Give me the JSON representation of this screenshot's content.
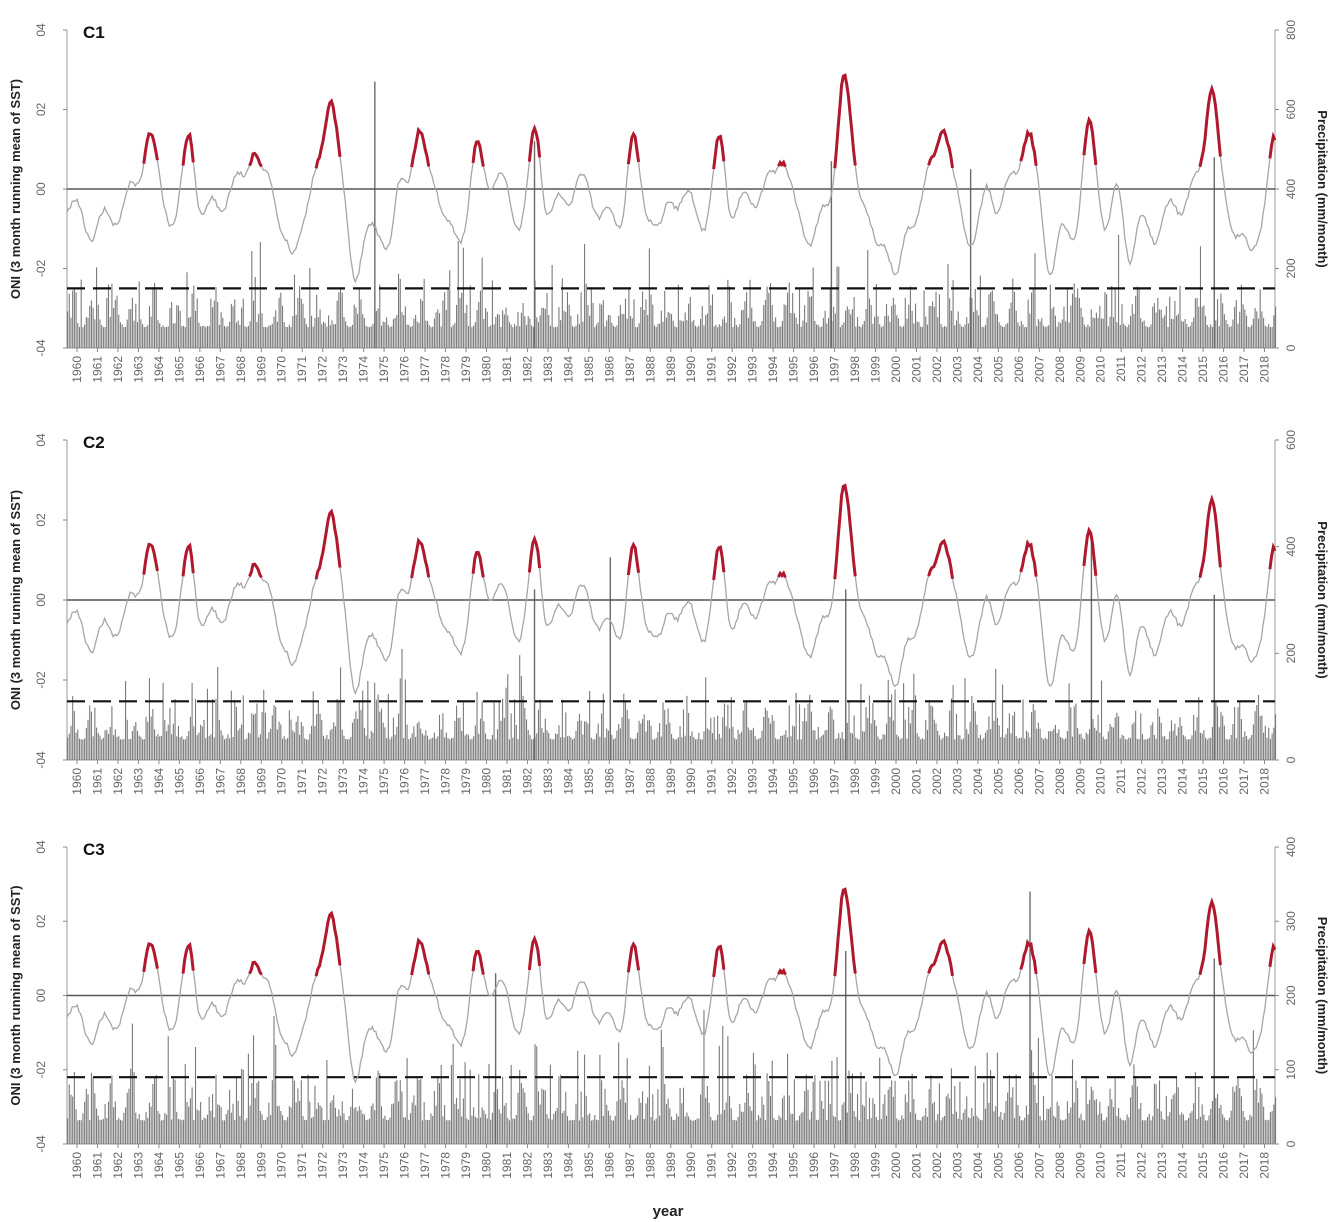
{
  "figure": {
    "xlabel": "year",
    "left_axis_label": "ONI (3 month running mean of SST)",
    "right_axis_label": "Precipitation (mm/month)",
    "year_ticks": [
      "1960",
      "1961",
      "1962",
      "1963",
      "1964",
      "1965",
      "1966",
      "1967",
      "1968",
      "1969",
      "1970",
      "1971",
      "1972",
      "1973",
      "1974",
      "1975",
      "1976",
      "1977",
      "1978",
      "1979",
      "1980",
      "1981",
      "1982",
      "1983",
      "1984",
      "1985",
      "1986",
      "1987",
      "1988",
      "1989",
      "1990",
      "1991",
      "1992",
      "1993",
      "1994",
      "1995",
      "1996",
      "1997",
      "1998",
      "1999",
      "2000",
      "2001",
      "2002",
      "2003",
      "2004",
      "2005",
      "2006",
      "2007",
      "2008",
      "2009",
      "2010",
      "2011",
      "2012",
      "2013",
      "2014",
      "2015",
      "2016",
      "2017",
      "2018"
    ],
    "left_ticks": [
      "04",
      "02",
      "00",
      "-02",
      "-04"
    ],
    "colors": {
      "oni_line": "#a6a6a6",
      "el_nino_highlight": "#b0182e",
      "precip_bars": "#7a7a7a",
      "zero_line": "#555555",
      "threshold_line": "#111111"
    }
  },
  "chart_data": [
    {
      "type": "bar",
      "panel": "C1",
      "x_range": [
        1960,
        2019
      ],
      "oni_ylim": [
        -0.4,
        0.4
      ],
      "precip_ylim": [
        0,
        800
      ],
      "right_ticks": [
        "800",
        "600",
        "400",
        "200",
        "0"
      ],
      "threshold_precip": 150,
      "oni_peaks": [
        [
          1964.0,
          0.12
        ],
        [
          1966.0,
          0.18
        ],
        [
          1969.1,
          0.1
        ],
        [
          1970.0,
          0.08
        ],
        [
          1972.9,
          0.2
        ],
        [
          1977.2,
          0.08
        ],
        [
          1978.0,
          0.08
        ],
        [
          1980.0,
          0.06
        ],
        [
          1982.9,
          0.22
        ],
        [
          1987.6,
          0.16
        ],
        [
          1991.9,
          0.16
        ],
        [
          1995.0,
          0.1
        ],
        [
          1997.9,
          0.23
        ],
        [
          2002.8,
          0.12
        ],
        [
          2005.0,
          0.07
        ],
        [
          2006.9,
          0.09
        ],
        [
          2009.9,
          0.13
        ],
        [
          2015.9,
          0.26
        ],
        [
          2018.9,
          0.09
        ]
      ],
      "precip_spikes": [
        [
          1975.0,
          670
        ],
        [
          1982.8,
          520
        ],
        [
          1997.3,
          470
        ],
        [
          2004.1,
          450
        ],
        [
          2016.0,
          480
        ]
      ]
    },
    {
      "type": "bar",
      "panel": "C2",
      "x_range": [
        1960,
        2019
      ],
      "oni_ylim": [
        -0.4,
        0.4
      ],
      "precip_ylim": [
        0,
        600
      ],
      "right_ticks": [
        "600",
        "400",
        "200",
        "0"
      ],
      "threshold_precip": 110,
      "oni_peaks": [
        [
          1964.0,
          0.12
        ],
        [
          1966.0,
          0.18
        ],
        [
          1969.1,
          0.1
        ],
        [
          1970.0,
          0.08
        ],
        [
          1972.9,
          0.2
        ],
        [
          1977.2,
          0.08
        ],
        [
          1978.0,
          0.08
        ],
        [
          1980.0,
          0.06
        ],
        [
          1982.9,
          0.22
        ],
        [
          1987.6,
          0.16
        ],
        [
          1991.9,
          0.16
        ],
        [
          1995.0,
          0.1
        ],
        [
          1997.9,
          0.23
        ],
        [
          2002.8,
          0.12
        ],
        [
          2005.0,
          0.07
        ],
        [
          2006.9,
          0.09
        ],
        [
          2009.9,
          0.13
        ],
        [
          2015.9,
          0.26
        ],
        [
          2018.9,
          0.09
        ]
      ],
      "precip_spikes": [
        [
          1986.5,
          380
        ],
        [
          1982.8,
          320
        ],
        [
          1998.0,
          320
        ],
        [
          2010.0,
          420
        ],
        [
          2016.0,
          310
        ]
      ]
    },
    {
      "type": "bar",
      "panel": "C3",
      "x_range": [
        1960,
        2019
      ],
      "oni_ylim": [
        -0.4,
        0.4
      ],
      "precip_ylim": [
        0,
        400
      ],
      "right_ticks": [
        "400",
        "300",
        "200",
        "100",
        "0"
      ],
      "threshold_precip": 90,
      "oni_peaks": [
        [
          1964.0,
          0.12
        ],
        [
          1966.0,
          0.18
        ],
        [
          1969.1,
          0.1
        ],
        [
          1970.0,
          0.08
        ],
        [
          1972.9,
          0.2
        ],
        [
          1977.2,
          0.08
        ],
        [
          1978.0,
          0.08
        ],
        [
          1980.0,
          0.06
        ],
        [
          1982.9,
          0.22
        ],
        [
          1987.6,
          0.16
        ],
        [
          1991.9,
          0.16
        ],
        [
          1995.0,
          0.1
        ],
        [
          1997.9,
          0.23
        ],
        [
          2002.8,
          0.12
        ],
        [
          2005.0,
          0.07
        ],
        [
          2006.9,
          0.09
        ],
        [
          2009.9,
          0.13
        ],
        [
          2015.9,
          0.26
        ],
        [
          2018.9,
          0.09
        ]
      ],
      "precip_spikes": [
        [
          2007.0,
          340
        ],
        [
          1980.9,
          230
        ],
        [
          1998.0,
          260
        ],
        [
          2016.0,
          250
        ]
      ]
    }
  ]
}
